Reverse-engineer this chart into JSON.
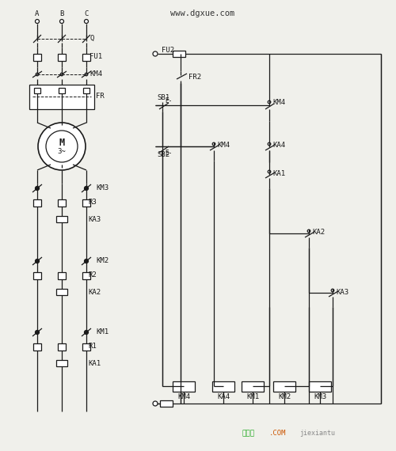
{
  "bg_color": "#f0f0eb",
  "line_color": "#1a1a1a",
  "figsize": [
    5.0,
    5.7
  ],
  "dpi": 100,
  "website_text": "www.dgxue.com",
  "bottom_green": "接线图",
  "bottom_orange": ".COM",
  "bottom_gray": "jiexiantu"
}
